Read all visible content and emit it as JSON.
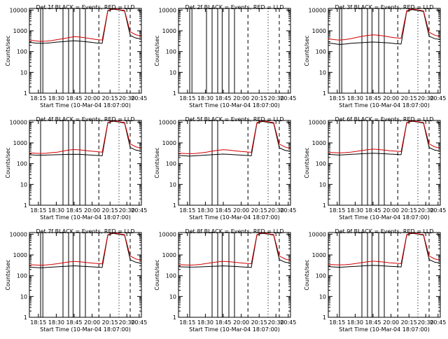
{
  "figure": {
    "background": "#ffffff",
    "axis_color": "#000000",
    "events_color": "#000000",
    "lld_color": "#d40000"
  },
  "chart_data": [
    {
      "type": "line",
      "title": "Det 1f BLACK = Events, RED = LLD",
      "xlabel": "Start Time (10-Mar-04 18:07:00)",
      "ylabel": "Counts/sec",
      "x_ticks": [
        "18:15",
        "18:30",
        "18:45",
        "20:00",
        "20:15",
        "20:30",
        "20:45"
      ],
      "y_ticks": [
        "1",
        "10",
        "100",
        "1000",
        "10000"
      ],
      "y_scale": "log",
      "ylim": [
        1,
        12000
      ],
      "series": [
        {
          "name": "Events",
          "color": "#000000",
          "x": [
            0,
            0.05,
            0.1,
            0.15,
            0.2,
            0.25,
            0.3,
            0.35,
            0.4,
            0.45,
            0.5,
            0.55,
            0.6,
            0.65,
            0.7,
            0.72,
            0.75,
            0.8,
            0.85,
            0.9,
            0.95,
            1.0
          ],
          "y": [
            280,
            260,
            250,
            255,
            270,
            290,
            300,
            320,
            330,
            320,
            300,
            280,
            260,
            250,
            9000,
            10000,
            11000,
            10000,
            9000,
            600,
            450,
            400
          ]
        },
        {
          "name": "LLD",
          "color": "#d40000",
          "x": [
            0,
            0.05,
            0.1,
            0.15,
            0.2,
            0.25,
            0.3,
            0.35,
            0.4,
            0.45,
            0.5,
            0.55,
            0.6,
            0.65,
            0.7,
            0.72,
            0.75,
            0.8,
            0.85,
            0.9,
            0.95,
            1.0
          ],
          "y": [
            360,
            330,
            310,
            320,
            340,
            380,
            420,
            470,
            520,
            500,
            460,
            420,
            380,
            360,
            9500,
            10500,
            11500,
            10500,
            9500,
            900,
            650,
            550
          ]
        }
      ]
    },
    {
      "type": "line",
      "title": "Det 2f BLACK = Events, RED = LLD",
      "xlabel": "Start Time (10-Mar-04 18:07:00)",
      "ylabel": "Counts/sec",
      "x_ticks": [
        "18:15",
        "18:30",
        "18:45",
        "20:00",
        "20:15",
        "20:30",
        "20:45"
      ],
      "y_ticks": [
        "1",
        "10",
        "100",
        "1000",
        "10000"
      ],
      "y_scale": "log",
      "ylim": [
        1,
        12000
      ],
      "series": []
    },
    {
      "type": "line",
      "title": "Det 3f BLACK = Events, RED = LLD",
      "xlabel": "Start Time (10-Mar-04 18:07:00)",
      "ylabel": "Counts/sec",
      "x_ticks": [
        "18:15",
        "18:30",
        "18:45",
        "20:00",
        "20:15",
        "20:30",
        "20:45"
      ],
      "y_ticks": [
        "1",
        "10",
        "100",
        "1000",
        "10000"
      ],
      "y_scale": "log",
      "ylim": [
        1,
        12000
      ],
      "series": [
        {
          "name": "Events",
          "color": "#000000",
          "x": [
            0,
            0.05,
            0.1,
            0.15,
            0.2,
            0.25,
            0.3,
            0.35,
            0.4,
            0.45,
            0.5,
            0.55,
            0.6,
            0.65,
            0.7,
            0.72,
            0.75,
            0.8,
            0.85,
            0.9,
            0.95,
            1.0
          ],
          "y": [
            260,
            240,
            220,
            230,
            250,
            260,
            270,
            280,
            290,
            280,
            270,
            260,
            240,
            230,
            8500,
            9500,
            10500,
            9500,
            8500,
            550,
            420,
            380
          ]
        },
        {
          "name": "LLD",
          "color": "#d40000",
          "x": [
            0,
            0.05,
            0.1,
            0.15,
            0.2,
            0.25,
            0.3,
            0.35,
            0.4,
            0.45,
            0.5,
            0.55,
            0.6,
            0.65,
            0.7,
            0.72,
            0.75,
            0.8,
            0.85,
            0.9,
            0.95,
            1.0
          ],
          "y": [
            420,
            380,
            360,
            380,
            420,
            480,
            540,
            600,
            640,
            610,
            560,
            500,
            460,
            440,
            9200,
            10200,
            11200,
            10200,
            9200,
            850,
            620,
            520
          ]
        }
      ]
    },
    {
      "type": "line",
      "title": "Det 4f BLACK = Events, RED = LLD",
      "xlabel": "Start Time (10-Mar-04 18:07:00)",
      "ylabel": "Counts/sec",
      "x_ticks": [
        "18:15",
        "18:30",
        "18:45",
        "20:00",
        "20:15",
        "20:30",
        "20:45"
      ],
      "y_ticks": [
        "1",
        "10",
        "100",
        "1000",
        "10000"
      ],
      "y_scale": "log",
      "ylim": [
        1,
        12000
      ],
      "series": [
        {
          "name": "Events",
          "color": "#000000",
          "x": [
            0,
            0.05,
            0.1,
            0.15,
            0.2,
            0.25,
            0.3,
            0.35,
            0.4,
            0.45,
            0.5,
            0.55,
            0.6,
            0.65,
            0.7,
            0.72,
            0.75,
            0.8,
            0.85,
            0.9,
            0.95,
            1.0
          ],
          "y": [
            270,
            260,
            255,
            260,
            265,
            270,
            275,
            280,
            285,
            280,
            270,
            260,
            250,
            240,
            9000,
            10000,
            11000,
            10000,
            9000,
            600,
            450,
            400
          ]
        },
        {
          "name": "LLD",
          "color": "#d40000",
          "x": [
            0,
            0.05,
            0.1,
            0.15,
            0.2,
            0.25,
            0.3,
            0.35,
            0.4,
            0.45,
            0.5,
            0.55,
            0.6,
            0.65,
            0.7,
            0.72,
            0.75,
            0.8,
            0.85,
            0.9,
            0.95,
            1.0
          ],
          "y": [
            330,
            320,
            310,
            320,
            340,
            360,
            400,
            450,
            480,
            460,
            430,
            400,
            380,
            360,
            9500,
            10500,
            11500,
            10500,
            9500,
            900,
            650,
            550
          ]
        }
      ]
    },
    {
      "type": "line",
      "title": "Det 5f BLACK = Events, RED = LLD",
      "xlabel": "Start Time (10-Mar-04 18:07:00)",
      "ylabel": "Counts/sec",
      "x_ticks": [
        "18:15",
        "18:30",
        "18:45",
        "20:00",
        "20:15",
        "20:30",
        "20:45"
      ],
      "y_ticks": [
        "1",
        "10",
        "100",
        "1000",
        "10000"
      ],
      "y_scale": "log",
      "ylim": [
        1,
        12000
      ],
      "series": [
        {
          "name": "Events",
          "color": "#000000",
          "x": [
            0,
            0.05,
            0.1,
            0.15,
            0.2,
            0.25,
            0.3,
            0.35,
            0.4,
            0.45,
            0.5,
            0.55,
            0.6,
            0.65,
            0.7,
            0.72,
            0.75,
            0.8,
            0.85,
            0.9,
            0.95,
            1.0
          ],
          "y": [
            250,
            240,
            230,
            240,
            250,
            260,
            270,
            280,
            290,
            280,
            270,
            260,
            250,
            240,
            8800,
            9800,
            10800,
            9800,
            8800,
            580,
            440,
            390
          ]
        },
        {
          "name": "LLD",
          "color": "#d40000",
          "x": [
            0,
            0.05,
            0.1,
            0.15,
            0.2,
            0.25,
            0.3,
            0.35,
            0.4,
            0.45,
            0.5,
            0.55,
            0.6,
            0.65,
            0.7,
            0.72,
            0.75,
            0.8,
            0.85,
            0.9,
            0.95,
            1.0
          ],
          "y": [
            320,
            310,
            300,
            310,
            330,
            360,
            400,
            440,
            470,
            450,
            420,
            390,
            370,
            350,
            9400,
            10400,
            11400,
            10400,
            9400,
            880,
            640,
            540
          ]
        }
      ]
    },
    {
      "type": "line",
      "title": "Det 6f BLACK = Events, RED = LLD",
      "xlabel": "Start Time (10-Mar-04 18:07:00)",
      "ylabel": "Counts/sec",
      "x_ticks": [
        "18:15",
        "18:30",
        "18:45",
        "20:00",
        "20:15",
        "20:30",
        "20:45"
      ],
      "y_ticks": [
        "1",
        "10",
        "100",
        "1000",
        "10000"
      ],
      "y_scale": "log",
      "ylim": [
        1,
        12000
      ],
      "series": [
        {
          "name": "Events",
          "color": "#000000",
          "x": [
            0,
            0.05,
            0.1,
            0.15,
            0.2,
            0.25,
            0.3,
            0.35,
            0.4,
            0.45,
            0.5,
            0.55,
            0.6,
            0.65,
            0.7,
            0.72,
            0.75,
            0.8,
            0.85,
            0.9,
            0.95,
            1.0
          ],
          "y": [
            280,
            270,
            260,
            270,
            280,
            290,
            300,
            310,
            320,
            310,
            300,
            290,
            280,
            270,
            9000,
            10000,
            11000,
            10000,
            9000,
            600,
            450,
            400
          ]
        },
        {
          "name": "LLD",
          "color": "#d40000",
          "x": [
            0,
            0.05,
            0.1,
            0.15,
            0.2,
            0.25,
            0.3,
            0.35,
            0.4,
            0.45,
            0.5,
            0.55,
            0.6,
            0.65,
            0.7,
            0.72,
            0.75,
            0.8,
            0.85,
            0.9,
            0.95,
            1.0
          ],
          "y": [
            350,
            340,
            330,
            340,
            360,
            390,
            430,
            470,
            500,
            480,
            450,
            420,
            400,
            380,
            9500,
            10500,
            11500,
            10500,
            9500,
            900,
            650,
            550
          ]
        }
      ]
    },
    {
      "type": "line",
      "title": "Det 7f BLACK = Events, RED = LLD",
      "xlabel": "Start Time (10-Mar-04 18:07:00)",
      "ylabel": "Counts/sec",
      "x_ticks": [
        "18:15",
        "18:30",
        "18:45",
        "20:00",
        "20:15",
        "20:30",
        "20:45"
      ],
      "y_ticks": [
        "1",
        "10",
        "100",
        "1000",
        "10000"
      ],
      "y_scale": "log",
      "ylim": [
        1,
        12000
      ],
      "series": [
        {
          "name": "Events",
          "color": "#000000",
          "x": [
            0,
            0.05,
            0.1,
            0.15,
            0.2,
            0.25,
            0.3,
            0.35,
            0.4,
            0.45,
            0.5,
            0.55,
            0.6,
            0.65,
            0.7,
            0.72,
            0.75,
            0.8,
            0.85,
            0.9,
            0.95,
            1.0
          ],
          "y": [
            260,
            250,
            240,
            250,
            260,
            270,
            280,
            290,
            300,
            290,
            280,
            270,
            260,
            250,
            8900,
            9900,
            10900,
            9900,
            8900,
            590,
            445,
            395
          ]
        },
        {
          "name": "LLD",
          "color": "#d40000",
          "x": [
            0,
            0.05,
            0.1,
            0.15,
            0.2,
            0.25,
            0.3,
            0.35,
            0.4,
            0.45,
            0.5,
            0.55,
            0.6,
            0.65,
            0.7,
            0.72,
            0.75,
            0.8,
            0.85,
            0.9,
            0.95,
            1.0
          ],
          "y": [
            340,
            330,
            320,
            330,
            350,
            380,
            420,
            460,
            490,
            470,
            440,
            410,
            390,
            370,
            9450,
            10450,
            11450,
            10450,
            9450,
            890,
            645,
            545
          ]
        }
      ]
    },
    {
      "type": "line",
      "title": "Det 8f BLACK = Events, RED = LLD",
      "xlabel": "Start Time (10-Mar-04 18:07:00)",
      "ylabel": "Counts/sec",
      "x_ticks": [
        "18:15",
        "18:30",
        "18:45",
        "20:00",
        "20:15",
        "20:30",
        "20:45"
      ],
      "y_ticks": [
        "1",
        "10",
        "100",
        "1000",
        "10000"
      ],
      "y_scale": "log",
      "ylim": [
        1,
        12000
      ],
      "series": [
        {
          "name": "Events",
          "color": "#000000",
          "x": [
            0,
            0.05,
            0.1,
            0.15,
            0.2,
            0.25,
            0.3,
            0.35,
            0.4,
            0.45,
            0.5,
            0.55,
            0.6,
            0.65,
            0.7,
            0.72,
            0.75,
            0.8,
            0.85,
            0.9,
            0.95,
            1.0
          ],
          "y": [
            270,
            265,
            260,
            262,
            268,
            275,
            282,
            290,
            298,
            290,
            280,
            270,
            260,
            250,
            9000,
            10000,
            11000,
            10000,
            9000,
            600,
            450,
            400
          ]
        },
        {
          "name": "LLD",
          "color": "#d40000",
          "x": [
            0,
            0.05,
            0.1,
            0.15,
            0.2,
            0.25,
            0.3,
            0.35,
            0.4,
            0.45,
            0.5,
            0.55,
            0.6,
            0.65,
            0.7,
            0.72,
            0.75,
            0.8,
            0.85,
            0.9,
            0.95,
            1.0
          ],
          "y": [
            345,
            335,
            325,
            335,
            355,
            385,
            425,
            465,
            495,
            475,
            445,
            415,
            395,
            375,
            9500,
            10500,
            11500,
            10500,
            9500,
            900,
            650,
            550
          ]
        }
      ]
    },
    {
      "type": "line",
      "title": "Det 9f BLACK = Events, RED = LLD",
      "xlabel": "Start Time (10-Mar-04 18:07:00)",
      "ylabel": "Counts/sec",
      "x_ticks": [
        "18:15",
        "18:30",
        "18:45",
        "20:00",
        "20:15",
        "20:30",
        "20:45"
      ],
      "y_ticks": [
        "1",
        "10",
        "100",
        "1000",
        "10000"
      ],
      "y_scale": "log",
      "ylim": [
        1,
        12000
      ],
      "series": [
        {
          "name": "Events",
          "color": "#000000",
          "x": [
            0,
            0.05,
            0.1,
            0.15,
            0.2,
            0.25,
            0.3,
            0.35,
            0.4,
            0.45,
            0.5,
            0.55,
            0.6,
            0.65,
            0.7,
            0.72,
            0.75,
            0.8,
            0.85,
            0.9,
            0.95,
            1.0
          ],
          "y": [
            275,
            265,
            255,
            265,
            275,
            285,
            295,
            305,
            315,
            305,
            295,
            285,
            275,
            265,
            9000,
            10000,
            11000,
            10000,
            9000,
            600,
            450,
            400
          ]
        },
        {
          "name": "LLD",
          "color": "#d40000",
          "x": [
            0,
            0.05,
            0.1,
            0.15,
            0.2,
            0.25,
            0.3,
            0.35,
            0.4,
            0.45,
            0.5,
            0.55,
            0.6,
            0.65,
            0.7,
            0.72,
            0.75,
            0.8,
            0.85,
            0.9,
            0.95,
            1.0
          ],
          "y": [
            350,
            340,
            330,
            340,
            360,
            390,
            430,
            470,
            500,
            480,
            450,
            420,
            400,
            380,
            9500,
            10500,
            11500,
            10500,
            9500,
            900,
            650,
            550
          ]
        }
      ]
    }
  ]
}
